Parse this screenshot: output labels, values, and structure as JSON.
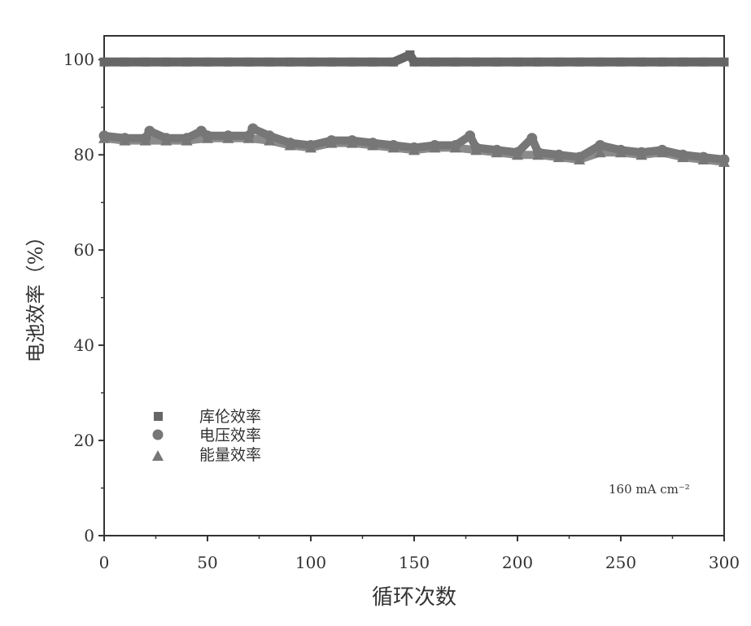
{
  "chart_data": {
    "type": "scatter",
    "xlabel": "循环次数",
    "ylabel": "电池效率（%）",
    "xlim": [
      0,
      300
    ],
    "ylim": [
      0,
      105
    ],
    "xticks": [
      "0",
      "50",
      "100",
      "150",
      "200",
      "250",
      "300"
    ],
    "yticks": [
      "0",
      "20",
      "40",
      "60",
      "80",
      "100"
    ],
    "grid": false,
    "legend_position": "lower-left",
    "annotation": "160 mA cm⁻²",
    "series": [
      {
        "name": "库伦效率",
        "marker": "square",
        "color": "#666666",
        "x": [
          0,
          10,
          20,
          30,
          40,
          50,
          60,
          70,
          80,
          90,
          100,
          110,
          120,
          130,
          140,
          148,
          150,
          160,
          170,
          180,
          190,
          200,
          210,
          220,
          230,
          240,
          250,
          260,
          270,
          280,
          290,
          300
        ],
        "y": [
          99.5,
          99.5,
          99.5,
          99.5,
          99.5,
          99.5,
          99.5,
          99.5,
          99.5,
          99.5,
          99.5,
          99.5,
          99.5,
          99.5,
          99.5,
          101,
          99.5,
          99.5,
          99.5,
          99.5,
          99.5,
          99.5,
          99.5,
          99.5,
          99.5,
          99.5,
          99.5,
          99.5,
          99.5,
          99.5,
          99.5,
          99.5
        ]
      },
      {
        "name": "电压效率",
        "marker": "circle",
        "color": "#777777",
        "x": [
          0,
          10,
          20,
          22,
          30,
          40,
          47,
          50,
          60,
          70,
          72,
          80,
          90,
          100,
          110,
          120,
          130,
          140,
          150,
          160,
          170,
          177,
          180,
          190,
          200,
          207,
          210,
          220,
          230,
          240,
          250,
          260,
          270,
          280,
          290,
          300
        ],
        "y": [
          84,
          83.5,
          83.5,
          85,
          83.5,
          83.5,
          85,
          84,
          84,
          84,
          85.5,
          84,
          82.5,
          82,
          83,
          83,
          82.5,
          82,
          81.5,
          82,
          82,
          84,
          81.5,
          81,
          80.5,
          83.5,
          80.5,
          80,
          79.5,
          82,
          81,
          80.5,
          81,
          80,
          79.5,
          79
        ]
      },
      {
        "name": "能量效率",
        "marker": "triangle",
        "color": "#777777",
        "x": [
          0,
          10,
          20,
          30,
          40,
          50,
          60,
          70,
          80,
          90,
          100,
          110,
          120,
          130,
          140,
          150,
          160,
          170,
          180,
          190,
          200,
          210,
          220,
          230,
          240,
          250,
          260,
          270,
          280,
          290,
          300
        ],
        "y": [
          83.5,
          83,
          83,
          83,
          83,
          83.5,
          83.5,
          83.5,
          83,
          82,
          81.5,
          82.5,
          82.5,
          82,
          81.5,
          81,
          81.5,
          81.5,
          81,
          80.5,
          80,
          80,
          79.5,
          79,
          80.5,
          80.5,
          80,
          80.5,
          79.5,
          79,
          78.5
        ]
      }
    ]
  }
}
